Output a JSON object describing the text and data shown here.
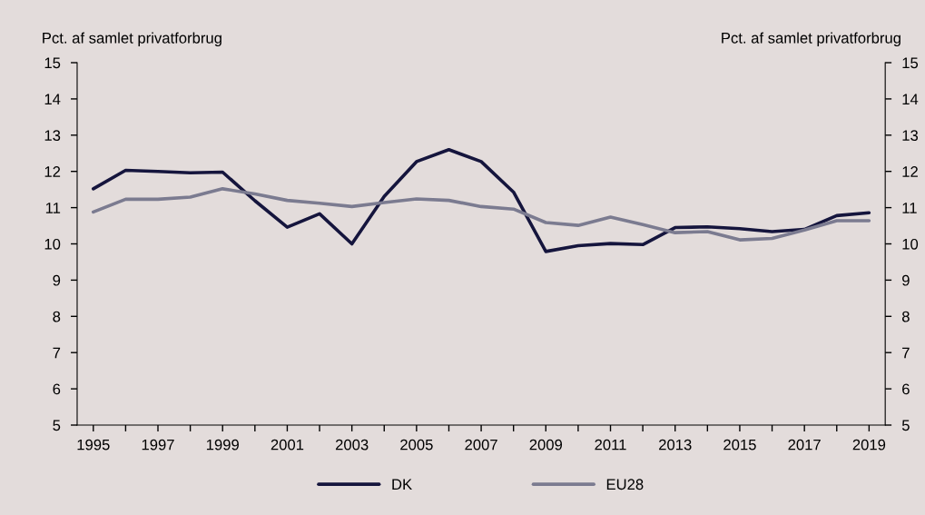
{
  "chart_data": {
    "type": "line",
    "ylabel": "Pct. af samlet privatforbrug",
    "y2label": "Pct. af samlet privatforbrug",
    "categories": [
      "1995",
      null,
      "1997",
      null,
      "1999",
      null,
      "2001",
      null,
      "2003",
      null,
      "2005",
      null,
      "2007",
      null,
      "2009",
      null,
      "2011",
      null,
      "2013",
      null,
      "2015",
      null,
      "2017",
      null,
      "2019"
    ],
    "series": [
      {
        "name": "DK",
        "color": "#15153d",
        "values": [
          11.52,
          12.03,
          12.0,
          11.96,
          11.98,
          11.19,
          10.46,
          10.83,
          10.0,
          11.31,
          12.27,
          12.6,
          12.27,
          11.43,
          9.79,
          9.95,
          10.01,
          9.98,
          10.45,
          10.47,
          10.42,
          10.34,
          10.4,
          10.78,
          10.86
        ]
      },
      {
        "name": "EU28",
        "color": "#7b7b90",
        "values": [
          10.88,
          11.23,
          11.23,
          11.29,
          11.52,
          11.38,
          11.2,
          11.12,
          11.03,
          11.14,
          11.24,
          11.2,
          11.03,
          10.96,
          10.59,
          10.51,
          10.74,
          10.53,
          10.31,
          10.34,
          10.11,
          10.15,
          10.38,
          10.64,
          10.64
        ]
      }
    ],
    "ylim": [
      5,
      15
    ],
    "yticks": [
      5,
      6,
      7,
      8,
      9,
      10,
      11,
      12,
      13,
      14,
      15
    ],
    "y2lim": [
      5,
      15
    ],
    "y2ticks": [
      5,
      6,
      7,
      8,
      9,
      10,
      11,
      12,
      13,
      14,
      15
    ],
    "legend": "bottom",
    "line_style": "solid",
    "grid": false
  }
}
